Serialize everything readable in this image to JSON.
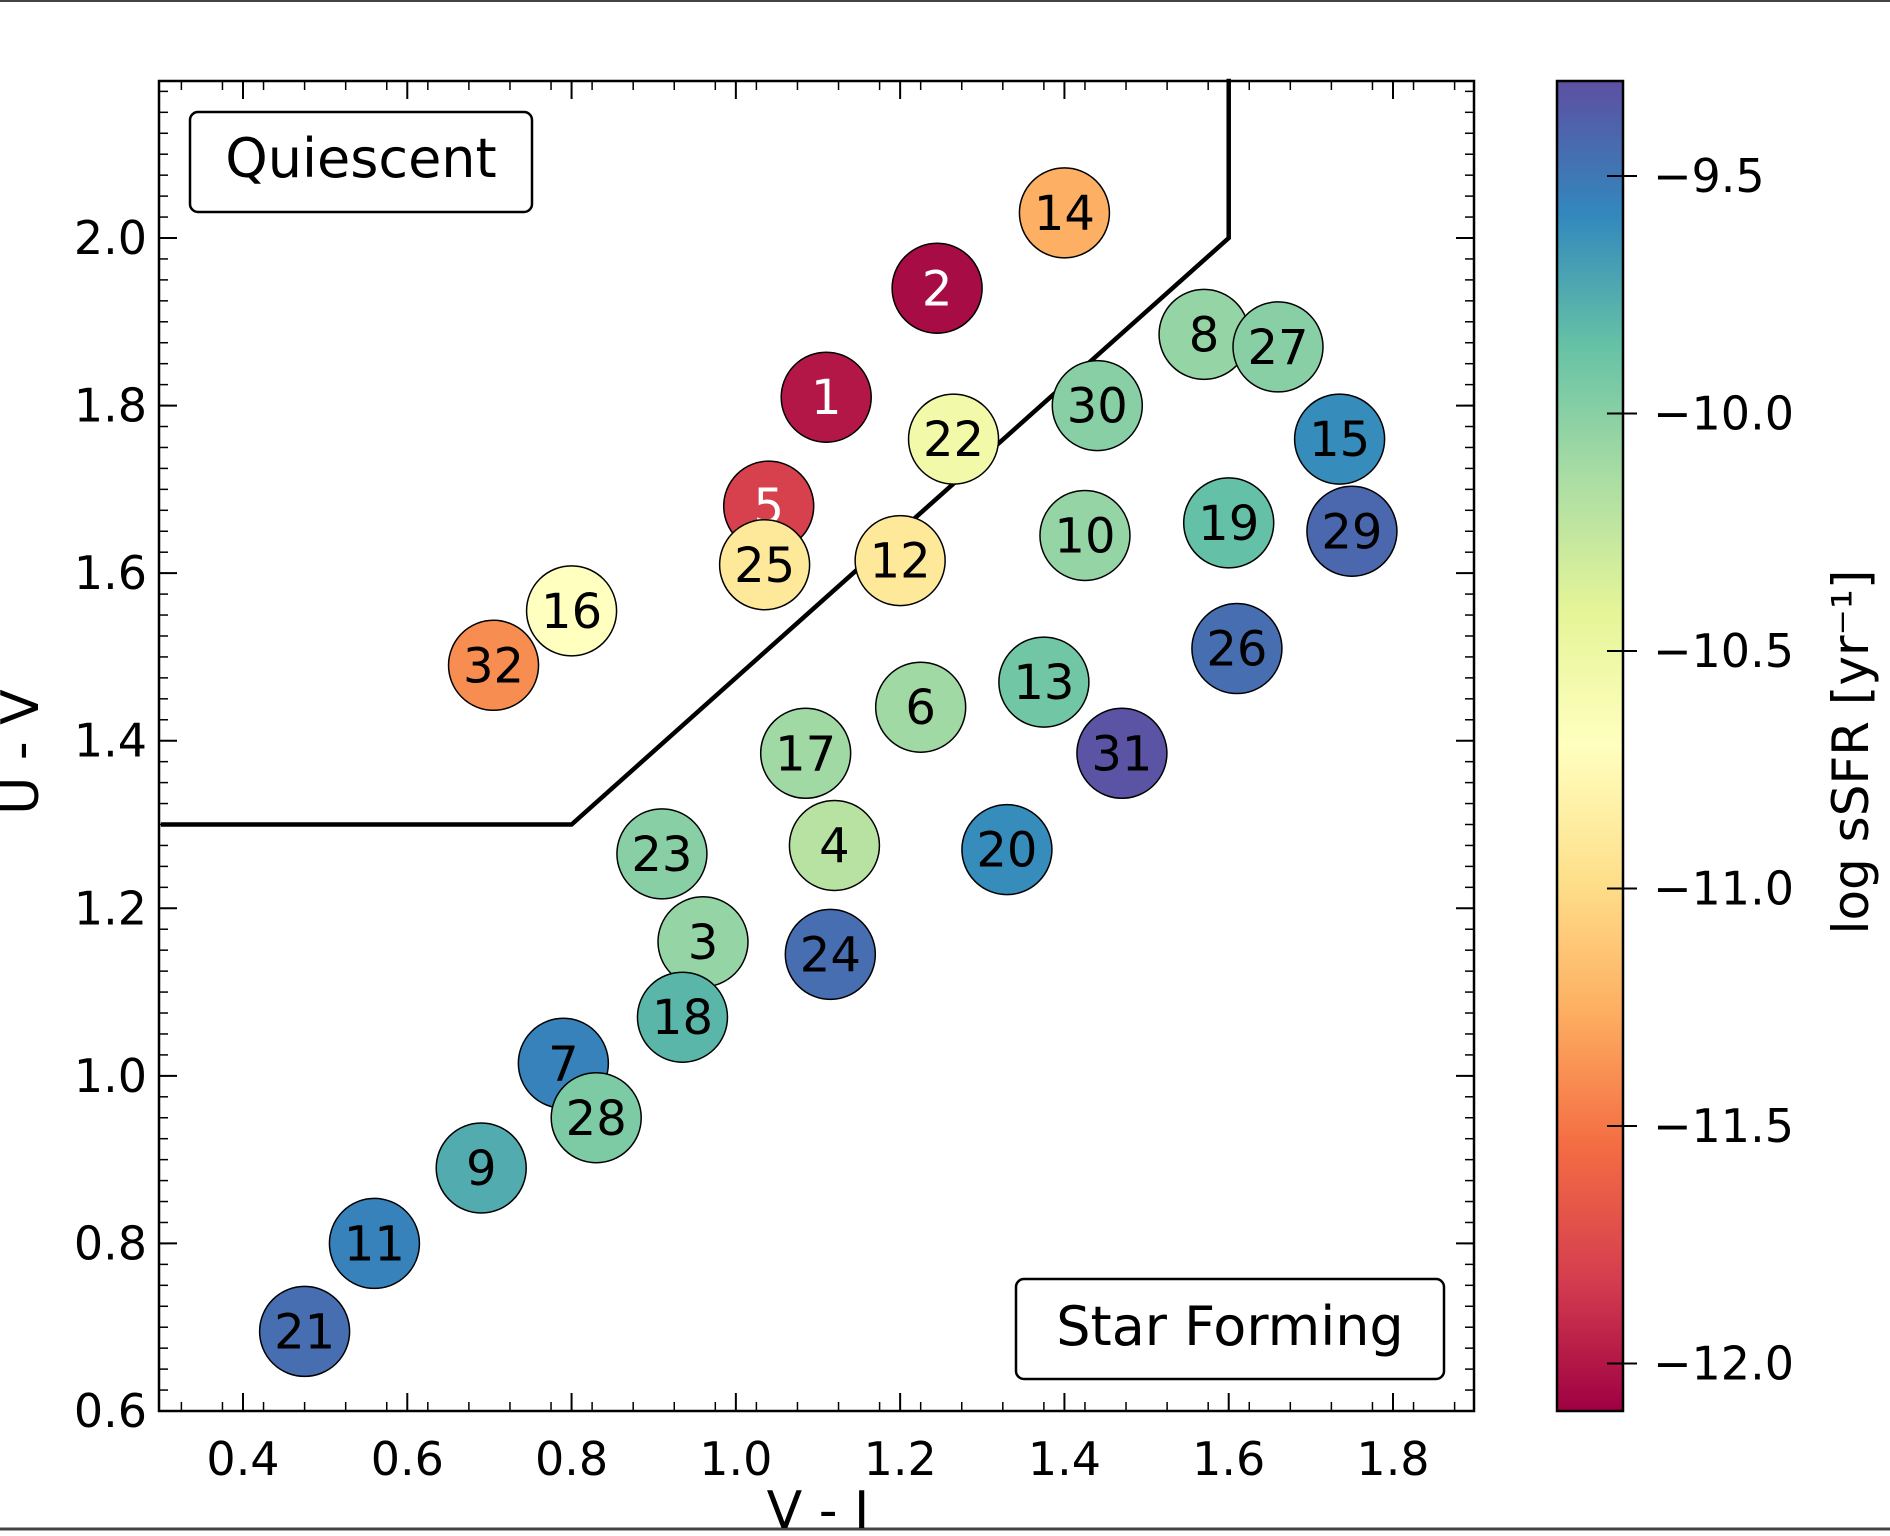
{
  "chart_data": {
    "type": "scatter",
    "title": "",
    "xlabel": "V - I",
    "ylabel": "U - V",
    "xlim": [
      0.3,
      1.9
    ],
    "ylim": [
      0.6,
      2.19
    ],
    "x_ticks": [
      0.4,
      0.6,
      0.8,
      1.0,
      1.2,
      1.4,
      1.6,
      1.8
    ],
    "x_tick_labels": [
      "0.4",
      "0.6",
      "0.8",
      "1.0",
      "1.2",
      "1.4",
      "1.6",
      "1.8"
    ],
    "y_ticks": [
      0.6,
      0.8,
      1.0,
      1.2,
      1.4,
      1.6,
      1.8,
      2.0
    ],
    "y_tick_labels": [
      "0.6",
      "0.8",
      "1.0",
      "1.2",
      "1.4",
      "1.6",
      "1.8",
      "2.0"
    ],
    "grid": false,
    "colormap": "Spectral",
    "colorbar": {
      "label": "log sSFR [yr⁻¹]",
      "range": [
        -12.1,
        -9.3
      ],
      "ticks": [
        -12.0,
        -11.5,
        -11.0,
        -10.5,
        -10.0,
        -9.5
      ],
      "tick_labels": [
        "−12.0",
        "−11.5",
        "−11.0",
        "−10.5",
        "−10.0",
        "−9.5"
      ],
      "stops": [
        "#9e0142",
        "#d53e4f",
        "#f46d43",
        "#fdae61",
        "#fee08b",
        "#ffffbf",
        "#e6f598",
        "#abdda4",
        "#66c2a5",
        "#3288bd",
        "#5e4fa2"
      ]
    },
    "annotations": [
      {
        "text": "Quiescent",
        "position": "top-left"
      },
      {
        "text": "Star Forming",
        "position": "bottom-right"
      }
    ],
    "boundary_line": {
      "x": [
        0.3,
        0.8,
        1.6,
        1.6
      ],
      "y": [
        1.3,
        1.3,
        2.0,
        2.19
      ]
    },
    "points": [
      {
        "label": "1",
        "x": 1.11,
        "y": 1.81,
        "log_ssfr": -12.0
      },
      {
        "label": "2",
        "x": 1.245,
        "y": 1.94,
        "log_ssfr": -12.05
      },
      {
        "label": "3",
        "x": 0.96,
        "y": 1.16,
        "log_ssfr": -10.05
      },
      {
        "label": "4",
        "x": 1.12,
        "y": 1.275,
        "log_ssfr": -10.2
      },
      {
        "label": "5",
        "x": 1.04,
        "y": 1.68,
        "log_ssfr": -11.8
      },
      {
        "label": "6",
        "x": 1.225,
        "y": 1.44,
        "log_ssfr": -10.1
      },
      {
        "label": "7",
        "x": 0.79,
        "y": 1.015,
        "log_ssfr": -9.55
      },
      {
        "label": "8",
        "x": 1.57,
        "y": 1.885,
        "log_ssfr": -10.05
      },
      {
        "label": "9",
        "x": 0.69,
        "y": 0.89,
        "log_ssfr": -9.75
      },
      {
        "label": "10",
        "x": 1.425,
        "y": 1.645,
        "log_ssfr": -10.05
      },
      {
        "label": "11",
        "x": 0.56,
        "y": 0.8,
        "log_ssfr": -9.55
      },
      {
        "label": "12",
        "x": 1.2,
        "y": 1.615,
        "log_ssfr": -10.9
      },
      {
        "label": "13",
        "x": 1.375,
        "y": 1.47,
        "log_ssfr": -9.9
      },
      {
        "label": "14",
        "x": 1.4,
        "y": 2.03,
        "log_ssfr": -11.25
      },
      {
        "label": "15",
        "x": 1.735,
        "y": 1.76,
        "log_ssfr": -9.6
      },
      {
        "label": "16",
        "x": 0.8,
        "y": 1.555,
        "log_ssfr": -10.7
      },
      {
        "label": "17",
        "x": 1.085,
        "y": 1.385,
        "log_ssfr": -10.1
      },
      {
        "label": "18",
        "x": 0.935,
        "y": 1.07,
        "log_ssfr": -9.8
      },
      {
        "label": "19",
        "x": 1.6,
        "y": 1.66,
        "log_ssfr": -9.85
      },
      {
        "label": "20",
        "x": 1.33,
        "y": 1.27,
        "log_ssfr": -9.6
      },
      {
        "label": "21",
        "x": 0.475,
        "y": 0.695,
        "log_ssfr": -9.45
      },
      {
        "label": "22",
        "x": 1.265,
        "y": 1.76,
        "log_ssfr": -10.55
      },
      {
        "label": "23",
        "x": 0.91,
        "y": 1.265,
        "log_ssfr": -10.0
      },
      {
        "label": "24",
        "x": 1.115,
        "y": 1.145,
        "log_ssfr": -9.45
      },
      {
        "label": "25",
        "x": 1.035,
        "y": 1.61,
        "log_ssfr": -10.9
      },
      {
        "label": "26",
        "x": 1.61,
        "y": 1.51,
        "log_ssfr": -9.45
      },
      {
        "label": "27",
        "x": 1.66,
        "y": 1.87,
        "log_ssfr": -10.0
      },
      {
        "label": "28",
        "x": 0.83,
        "y": 0.95,
        "log_ssfr": -9.95
      },
      {
        "label": "29",
        "x": 1.75,
        "y": 1.65,
        "log_ssfr": -9.42
      },
      {
        "label": "30",
        "x": 1.44,
        "y": 1.8,
        "log_ssfr": -10.0
      },
      {
        "label": "31",
        "x": 1.47,
        "y": 1.385,
        "log_ssfr": -9.32
      },
      {
        "label": "32",
        "x": 0.705,
        "y": 1.49,
        "log_ssfr": -11.4
      }
    ]
  }
}
